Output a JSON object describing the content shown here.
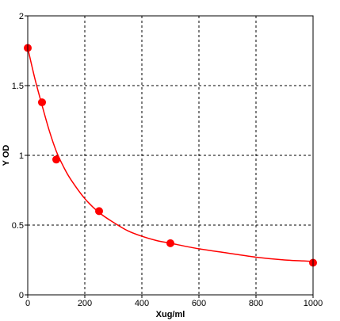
{
  "chart_data": {
    "type": "scatter",
    "title": "",
    "xlabel": "Xug/ml",
    "ylabel": "Y OD",
    "xlim": [
      0,
      1000
    ],
    "ylim": [
      0,
      2
    ],
    "x_ticks": [
      0,
      200,
      400,
      600,
      800,
      1000
    ],
    "x_tick_labels": [
      "0",
      "200",
      "400",
      "600",
      "800",
      "1000"
    ],
    "y_ticks": [
      0,
      0.5,
      1,
      1.5,
      2
    ],
    "y_tick_labels": [
      "0",
      "0.5",
      "1",
      "1.5",
      "2"
    ],
    "grid": true,
    "grid_style": "dashed",
    "legend": "none",
    "colors": {
      "series": "#ff0000",
      "grid": "#000000",
      "axes": "#000000"
    },
    "series": [
      {
        "style": "markers-with-fitted-curve",
        "points": [
          {
            "x": 0,
            "y": 1.77
          },
          {
            "x": 50,
            "y": 1.38
          },
          {
            "x": 100,
            "y": 0.97
          },
          {
            "x": 250,
            "y": 0.6
          },
          {
            "x": 500,
            "y": 0.37
          },
          {
            "x": 1000,
            "y": 0.23
          }
        ],
        "fit_curve": [
          {
            "x": 0,
            "y": 1.77
          },
          {
            "x": 25,
            "y": 1.55
          },
          {
            "x": 50,
            "y": 1.36
          },
          {
            "x": 75,
            "y": 1.18
          },
          {
            "x": 100,
            "y": 1.03
          },
          {
            "x": 125,
            "y": 0.92
          },
          {
            "x": 150,
            "y": 0.83
          },
          {
            "x": 200,
            "y": 0.69
          },
          {
            "x": 250,
            "y": 0.59
          },
          {
            "x": 300,
            "y": 0.52
          },
          {
            "x": 350,
            "y": 0.46
          },
          {
            "x": 400,
            "y": 0.42
          },
          {
            "x": 450,
            "y": 0.39
          },
          {
            "x": 500,
            "y": 0.37
          },
          {
            "x": 600,
            "y": 0.33
          },
          {
            "x": 700,
            "y": 0.3
          },
          {
            "x": 800,
            "y": 0.27
          },
          {
            "x": 900,
            "y": 0.25
          },
          {
            "x": 1000,
            "y": 0.24
          }
        ]
      }
    ]
  }
}
